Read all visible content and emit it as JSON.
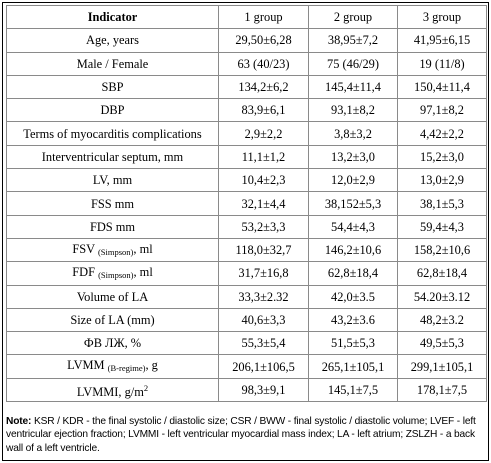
{
  "table": {
    "columns": [
      "Indicator",
      "1 group",
      "2 group",
      "3 group"
    ],
    "rows": [
      {
        "label": "Age, years",
        "sub": "",
        "label_after": "",
        "sup": "",
        "values": [
          "29,50±6,28",
          "38,95±7,2",
          "41,95±6,15"
        ]
      },
      {
        "label": "Male / Female",
        "sub": "",
        "label_after": "",
        "sup": "",
        "values": [
          "63 (40/23)",
          "75 (46/29)",
          "19 (11/8)"
        ]
      },
      {
        "label": "SBP",
        "sub": "",
        "label_after": "",
        "sup": "",
        "values": [
          "134,2±6,2",
          "145,4±11,4",
          "150,4±11,4"
        ]
      },
      {
        "label": "DBP",
        "sub": "",
        "label_after": "",
        "sup": "",
        "values": [
          "83,9±6,1",
          "93,1±8,2",
          "97,1±8,2"
        ]
      },
      {
        "label": "Terms of myocarditis complications",
        "sub": "",
        "label_after": "",
        "sup": "",
        "values": [
          "2,9±2,2",
          "3,8±3,2",
          "4,42±2,2"
        ]
      },
      {
        "label": "Interventricular septum, mm",
        "sub": "",
        "label_after": "",
        "sup": "",
        "values": [
          "11,1±1,2",
          "13,2±3,0",
          "15,2±3,0"
        ]
      },
      {
        "label": "LV, mm",
        "sub": "",
        "label_after": "",
        "sup": "",
        "values": [
          "10,4±2,3",
          "12,0±2,9",
          "13,0±2,9"
        ]
      },
      {
        "label": "FSS mm",
        "sub": "",
        "label_after": "",
        "sup": "",
        "values": [
          "32,1±4,4",
          "38,152±5,3",
          "38,1±5,3"
        ]
      },
      {
        "label": "FDS mm",
        "sub": "",
        "label_after": "",
        "sup": "",
        "values": [
          "53,2±3,3",
          "54,4±4,3",
          "59,4±4,3"
        ]
      },
      {
        "label": "FSV ",
        "sub": "(Simpson)",
        "label_after": ", ml",
        "sup": "",
        "values": [
          "118,0±32,7",
          "146,2±10,6",
          "158,2±10,6"
        ]
      },
      {
        "label": "FDF ",
        "sub": "(Simpson)",
        "label_after": ", ml",
        "sup": "",
        "values": [
          "31,7±16,8",
          "62,8±18,4",
          "62,8±18,4"
        ]
      },
      {
        "label": "Volume of LA",
        "sub": "",
        "label_after": "",
        "sup": "",
        "values": [
          "33,3±2.32",
          "42,0±3.5",
          "54.20±3.12"
        ]
      },
      {
        "label": "Size of LA (mm)",
        "sub": "",
        "label_after": "",
        "sup": "",
        "values": [
          "40,6±3,3",
          "43,2±3.6",
          "48,2±3.2"
        ]
      },
      {
        "label": "ФВ ЛЖ, %",
        "sub": "",
        "label_after": "",
        "sup": "",
        "values": [
          "55,3±5,4",
          "51,5±5,3",
          "49,5±5,3"
        ]
      },
      {
        "label": "LVMM ",
        "sub": "(B-regime)",
        "label_after": ", g",
        "sup": "",
        "values": [
          "206,1±106,5",
          "265,1±105,1",
          "299,1±105,1"
        ]
      },
      {
        "label": "LVMMI, g/m",
        "sub": "",
        "label_after": "",
        "sup": "2",
        "values": [
          "98,3±9,1",
          "145,1±7,5",
          "178,1±7,5"
        ]
      }
    ]
  },
  "note": {
    "prefix": "Note:",
    "text": " KSR / KDR - the final systolic / diastolic size; CSR / BWW - final systolic / diastolic volume; LVEF - left ventricular ejection fraction; LVMMI - left ventricular myocardial mass index; LA - left atrium; ZSLZH - a back wall of a left ventricle."
  }
}
